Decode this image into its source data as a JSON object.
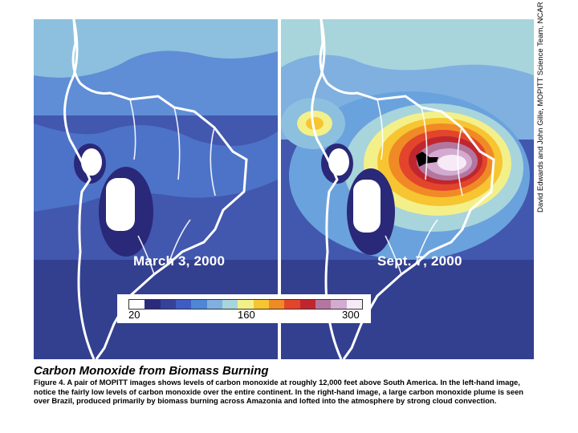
{
  "credit": "David Edwards and John Gille, MOPITT Science Team, NCAR",
  "panels": {
    "left": {
      "date": "March 3, 2000"
    },
    "right": {
      "date": "Sept. 7, 2000"
    }
  },
  "legend": {
    "min_label": "20",
    "mid_label": "160",
    "max_label": "300",
    "colors": [
      "#ffffff",
      "#2c2a7d",
      "#35429a",
      "#3f5cc2",
      "#4f86d6",
      "#7fb0e0",
      "#a8d4dc",
      "#f3f08a",
      "#f6c531",
      "#f08a26",
      "#e2452b",
      "#c0262e",
      "#b3779f",
      "#d3abd0",
      "#f6eaf6"
    ]
  },
  "caption": {
    "title": "Carbon Monoxide from Biomass Burning",
    "text": "Figure 4. A pair of MOPITT images shows levels of carbon monoxide at roughly 12,000 feet above South America. In the left-hand image, notice the fairly low levels of carbon monoxide over the entire continent. In the right-hand image, a large carbon monoxide plume is seen over Brazil, produced primarily by biomass burning across Amazonia and lofted into the atmosphere by strong cloud convection."
  }
}
